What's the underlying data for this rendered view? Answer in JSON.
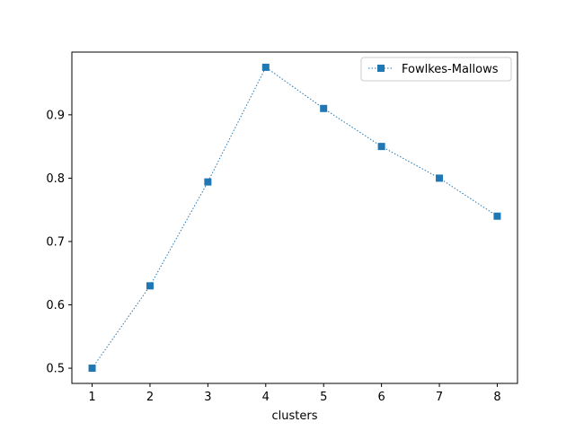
{
  "chart_data": {
    "type": "line",
    "title": "",
    "xlabel": "clusters",
    "ylabel": "",
    "x": [
      1,
      2,
      3,
      4,
      5,
      6,
      7,
      8
    ],
    "series": [
      {
        "name": "Fowlkes-Mallows",
        "values": [
          0.5,
          0.63,
          0.794,
          0.975,
          0.91,
          0.85,
          0.8,
          0.74
        ],
        "color": "#1f77b4",
        "marker": "square",
        "linestyle": "dotted"
      }
    ],
    "xlim": [
      0.65,
      8.35
    ],
    "ylim": [
      0.476,
      0.999
    ],
    "xticks": [
      1,
      2,
      3,
      4,
      5,
      6,
      7,
      8
    ],
    "yticks": [
      0.5,
      0.6,
      0.7,
      0.8,
      0.9
    ],
    "ytick_labels": [
      "0.5",
      "0.6",
      "0.7",
      "0.8",
      "0.9"
    ],
    "grid": false,
    "legend_position": "top-right"
  }
}
